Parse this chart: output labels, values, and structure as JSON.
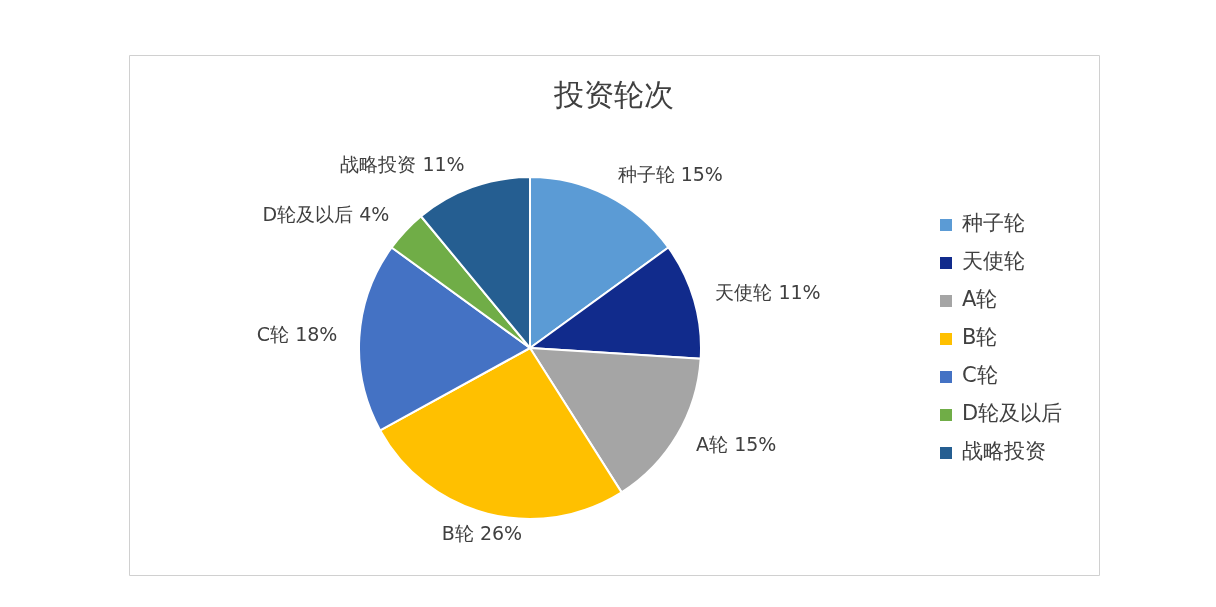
{
  "chart_data": {
    "type": "pie",
    "title": "投资轮次",
    "categories": [
      "种子轮",
      "天使轮",
      "A轮",
      "B轮",
      "C轮",
      "D轮及以后",
      "战略投资"
    ],
    "values": [
      15,
      11,
      15,
      26,
      18,
      4,
      11
    ],
    "colors": [
      "#5b9bd5",
      "#112b8c",
      "#a5a5a5",
      "#ffc000",
      "#4472c4",
      "#70ad47",
      "#255e91"
    ],
    "value_labels": [
      "种子轮 15%",
      "天使轮 11%",
      "A轮 15%",
      "B轮 26%",
      "C轮 18%",
      "D轮及以后 4%",
      "战略投资 11%"
    ],
    "legend": "right"
  }
}
